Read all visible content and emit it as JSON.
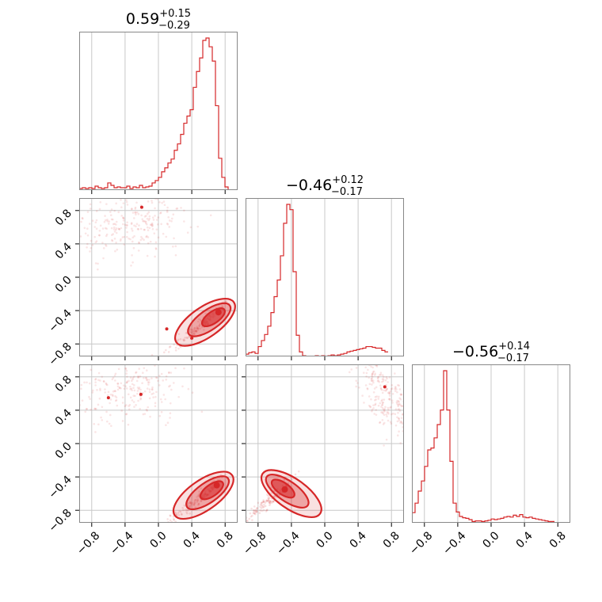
{
  "chart_data": {
    "type": "corner",
    "color": "#d62728",
    "parameters": 3,
    "axis_range": [
      -0.95,
      0.95
    ],
    "ticks": [
      -0.8,
      -0.4,
      0.0,
      0.4,
      0.8
    ],
    "tick_labels": [
      "−0.8",
      "−0.4",
      "0.0",
      "0.4",
      "0.8"
    ],
    "grid": true,
    "titles": [
      {
        "median": "0.59",
        "upper": "+0.15",
        "lower": "−0.29"
      },
      {
        "median": "−0.46",
        "upper": "+0.12",
        "lower": "−0.17"
      },
      {
        "median": "−0.56",
        "upper": "+0.14",
        "lower": "−0.17"
      }
    ],
    "histograms": [
      {
        "param": 1,
        "bin_start": -0.95,
        "bin_width": 0.038,
        "counts": [
          2,
          3,
          2,
          3,
          2,
          5,
          3,
          2,
          3,
          9,
          6,
          3,
          4,
          3,
          3,
          5,
          2,
          4,
          3,
          6,
          3,
          4,
          5,
          9,
          12,
          16,
          23,
          28,
          34,
          39,
          50,
          58,
          70,
          84,
          93,
          101,
          129,
          149,
          166,
          188,
          191,
          180,
          162,
          106,
          40,
          16,
          4,
          0,
          0,
          0,
          0
        ]
      },
      {
        "param": 2,
        "bin_start": -0.95,
        "bin_width": 0.038,
        "counts": [
          3,
          5,
          6,
          4,
          13,
          21,
          29,
          40,
          58,
          79,
          101,
          133,
          176,
          201,
          194,
          112,
          28,
          6,
          1,
          0,
          0,
          0,
          1,
          0,
          1,
          0,
          1,
          2,
          1,
          2,
          3,
          4,
          6,
          7,
          8,
          9,
          10,
          11,
          13,
          13,
          12,
          11,
          11,
          8,
          6
        ]
      },
      {
        "param": 3,
        "bin_start": -0.95,
        "bin_width": 0.038,
        "counts": [
          16,
          31,
          50,
          66,
          89,
          115,
          118,
          134,
          155,
          178,
          240,
          178,
          97,
          31,
          17,
          10,
          8,
          7,
          5,
          2,
          3,
          3,
          2,
          3,
          4,
          6,
          5,
          6,
          7,
          9,
          10,
          9,
          12,
          10,
          13,
          9,
          8,
          9,
          7,
          6,
          5,
          4,
          3,
          2,
          2
        ]
      }
    ],
    "scatter_panels": [
      {
        "x_param": 1,
        "y_param": 2,
        "mode_x": 0.72,
        "mode_y": -0.42,
        "outliers": [
          [
            -0.2,
            0.84
          ],
          [
            0.1,
            -0.62
          ],
          [
            0.4,
            -0.73
          ]
        ]
      },
      {
        "x_param": 1,
        "y_param": 3,
        "mode_x": 0.7,
        "mode_y": -0.5,
        "outliers": [
          [
            -0.6,
            0.55
          ],
          [
            -0.21,
            0.59
          ]
        ]
      },
      {
        "x_param": 2,
        "y_param": 3,
        "mode_x": -0.48,
        "mode_y": -0.55,
        "outliers": [
          [
            0.72,
            0.68
          ]
        ]
      }
    ]
  }
}
